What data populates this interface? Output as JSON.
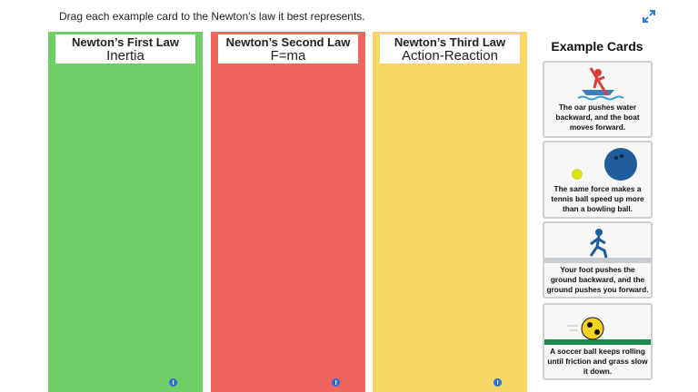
{
  "header": {
    "instruction": "Drag each example card to the Newton’s law it best represents."
  },
  "columns": [
    {
      "title": "Newton’s First Law",
      "subtitle": "Inertia"
    },
    {
      "title": "Newton’s Second Law",
      "subtitle": "F=ma"
    },
    {
      "title": "Newton’s Third Law",
      "subtitle": "Action-Reaction"
    }
  ],
  "cards_panel": {
    "heading": "Example Cards",
    "cards": [
      {
        "text": "The oar pushes water backward, and the boat moves forward."
      },
      {
        "text": "The same force makes a tennis ball speed up more than a bowling ball."
      },
      {
        "text": "Your foot pushes the ground backward, and the ground pushes you forward."
      },
      {
        "text": "A soccer ball keeps rolling until friction and grass slow it down."
      }
    ]
  }
}
